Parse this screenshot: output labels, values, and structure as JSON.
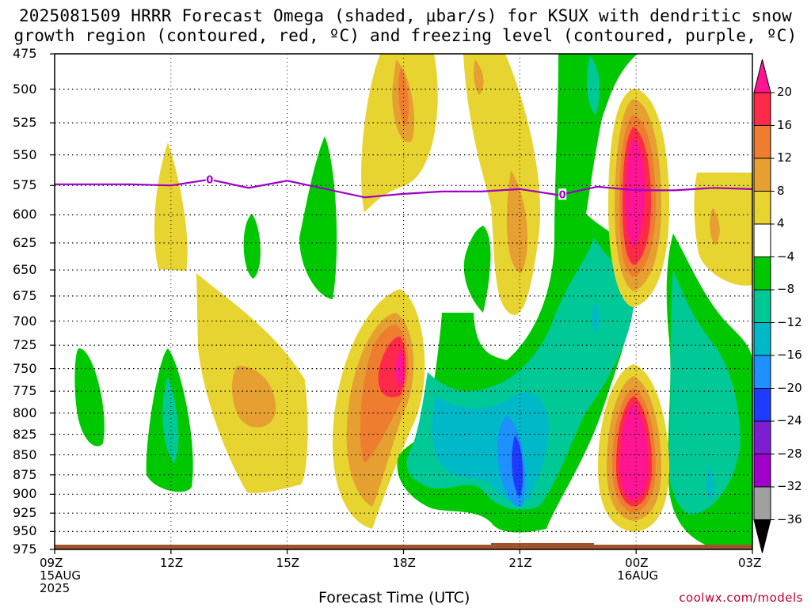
{
  "title_line1": "2025081509 HRRR Forecast Omega (shaded, μbar/s) for KSUX with dendritic snow",
  "title_line2": "growth region (contoured, red, ºC) and freezing level (contoured, purple, ºC)",
  "xlabel": "Forecast Time (UTC)",
  "credit": "coolwx.com/models",
  "colors": {
    "freezing_level": "#9e00c8",
    "ground": "#a0522d"
  },
  "chart_data": {
    "type": "heatmap",
    "title": "2025081509 HRRR Forecast Omega (shaded, μbar/s) for KSUX with dendritic snow growth region (contoured, red, ºC) and freezing level (contoured, purple, ºC)",
    "xlabel": "Forecast Time (UTC)",
    "ylabel": "",
    "x_range_hours": [
      0,
      18
    ],
    "y_range_mb": [
      475,
      975
    ],
    "y_log_scale": true,
    "y_inverted": true,
    "grid": true,
    "x_ticks": [
      {
        "hour": 0,
        "lines": [
          "09Z",
          "15AUG",
          "2025"
        ]
      },
      {
        "hour": 3,
        "lines": [
          "12Z"
        ]
      },
      {
        "hour": 6,
        "lines": [
          "15Z"
        ]
      },
      {
        "hour": 9,
        "lines": [
          "18Z"
        ]
      },
      {
        "hour": 12,
        "lines": [
          "21Z"
        ]
      },
      {
        "hour": 15,
        "lines": [
          "00Z",
          "16AUG"
        ]
      },
      {
        "hour": 18,
        "lines": [
          "03Z"
        ]
      }
    ],
    "y_ticks": [
      475,
      500,
      525,
      550,
      575,
      600,
      625,
      650,
      675,
      700,
      725,
      750,
      775,
      800,
      825,
      850,
      875,
      900,
      925,
      950,
      975
    ],
    "colorbar": {
      "labels": [
        20,
        16,
        12,
        8,
        4,
        -4,
        -8,
        -12,
        -16,
        -20,
        -24,
        -28,
        -32,
        -36
      ],
      "bands": [
        {
          "min": 20,
          "max": null,
          "color": "#ff1493"
        },
        {
          "min": 16,
          "max": 20,
          "color": "#ff2a4a"
        },
        {
          "min": 12,
          "max": 16,
          "color": "#ee7d2f"
        },
        {
          "min": 8,
          "max": 12,
          "color": "#e6a032"
        },
        {
          "min": 4,
          "max": 8,
          "color": "#e8d431"
        },
        {
          "min": -4,
          "max": 4,
          "color": "#ffffff"
        },
        {
          "min": -8,
          "max": -4,
          "color": "#00c800"
        },
        {
          "min": -12,
          "max": -8,
          "color": "#00c896"
        },
        {
          "min": -16,
          "max": -12,
          "color": "#00b9c8"
        },
        {
          "min": -20,
          "max": -16,
          "color": "#1e90ff"
        },
        {
          "min": -24,
          "max": -20,
          "color": "#1e3cff"
        },
        {
          "min": -28,
          "max": -24,
          "color": "#7d1ed2"
        },
        {
          "min": -32,
          "max": -28,
          "color": "#a000c8"
        },
        {
          "min": -36,
          "max": -32,
          "color": "#a0a0a0"
        },
        {
          "min": null,
          "max": -36,
          "color": "#000000"
        }
      ]
    },
    "freezing_level": {
      "label": "0",
      "hours": [
        0,
        1,
        2,
        3,
        4,
        5,
        6,
        7,
        8,
        9,
        10,
        11,
        12,
        13,
        14,
        15,
        16,
        17,
        18
      ],
      "pressure_mb": [
        574,
        574,
        574,
        575,
        570,
        577,
        571,
        578,
        585,
        582,
        580,
        580,
        578,
        583,
        576,
        579,
        579,
        577,
        578
      ]
    },
    "omega_features": [
      {
        "hour": 1.1,
        "p_mb": 790,
        "value": -7
      },
      {
        "hour": 3.0,
        "p_mb": 600,
        "value": 6
      },
      {
        "hour": 3.0,
        "p_mb": 815,
        "value": -12
      },
      {
        "hour": 4.0,
        "p_mb": 740,
        "value": 6
      },
      {
        "hour": 5.0,
        "p_mb": 800,
        "value": 9
      },
      {
        "hour": 5.1,
        "p_mb": 630,
        "value": -6
      },
      {
        "hour": 6.8,
        "p_mb": 615,
        "value": -7
      },
      {
        "hour": 9.0,
        "p_mb": 545,
        "value": 7
      },
      {
        "hour": 9.0,
        "p_mb": 520,
        "value": 13
      },
      {
        "hour": 8.6,
        "p_mb": 770,
        "value": 12
      },
      {
        "hour": 9.0,
        "p_mb": 750,
        "value": 18
      },
      {
        "hour": 11.0,
        "p_mb": 550,
        "value": 6
      },
      {
        "hour": 12.0,
        "p_mb": 620,
        "value": 10
      },
      {
        "hour": 10.8,
        "p_mb": 660,
        "value": -7
      },
      {
        "hour": 12.2,
        "p_mb": 850,
        "value": -23
      },
      {
        "hour": 11.0,
        "p_mb": 830,
        "value": -12
      },
      {
        "hour": 14.0,
        "p_mb": 600,
        "value": -10
      },
      {
        "hour": 14.1,
        "p_mb": 720,
        "value": -13
      },
      {
        "hour": 15.2,
        "p_mb": 585,
        "value": 19
      },
      {
        "hour": 15.1,
        "p_mb": 845,
        "value": 22
      },
      {
        "hour": 16.7,
        "p_mb": 800,
        "value": -10
      },
      {
        "hour": 17.0,
        "p_mb": 615,
        "value": 8
      }
    ]
  }
}
